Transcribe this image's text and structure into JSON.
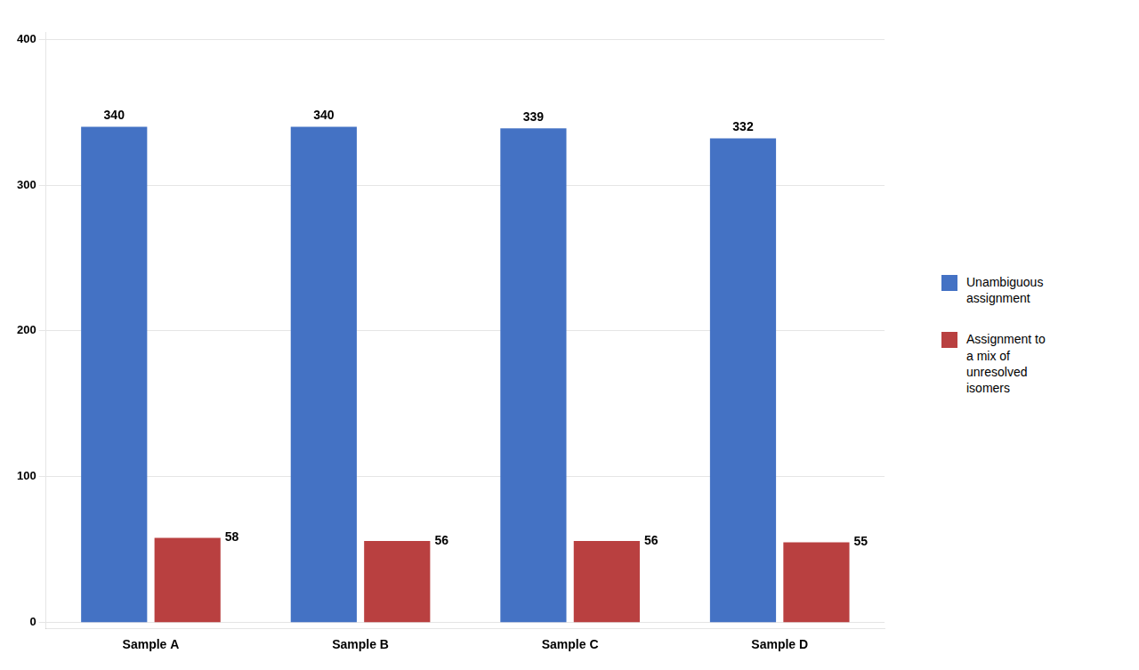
{
  "chart_data": {
    "type": "bar",
    "categories": [
      "Sample A",
      "Sample B",
      "Sample C",
      "Sample D"
    ],
    "series": [
      {
        "name": "Unambiguous\nassignment",
        "color": "#4472C4",
        "values": [
          340,
          340,
          339,
          332
        ]
      },
      {
        "name": "Assignment to\na mix of\nunresolved\nisomers",
        "color": "#B94040",
        "values": [
          58,
          56,
          56,
          55
        ]
      }
    ],
    "ylim": [
      -4,
      405
    ],
    "yticks": [
      0,
      100,
      200,
      300,
      400
    ],
    "grid": true,
    "legend": "right",
    "data_labels": true
  }
}
